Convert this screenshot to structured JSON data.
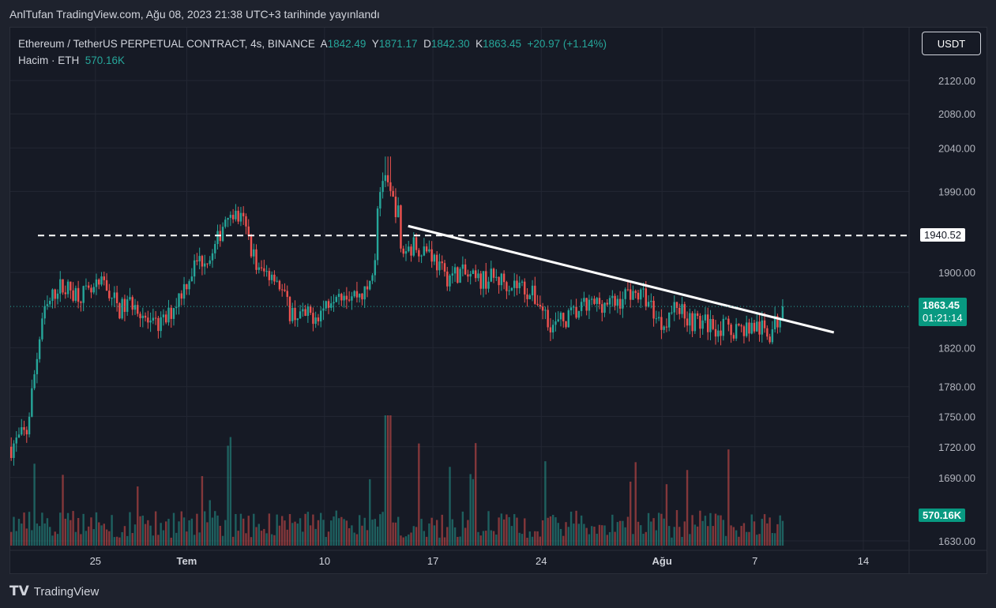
{
  "header": {
    "published": "AnlTufan TradingView.com, Ağu 08, 2023 21:38 UTC+3 tarihinde yayınlandı"
  },
  "legend": {
    "symbol": "Ethereum / TetherUS PERPETUAL CONTRACT, 4s, BINANCE",
    "o_label": "A",
    "o": "1842.49",
    "h_label": "Y",
    "h": "1871.17",
    "l_label": "D",
    "l": "1842.30",
    "c_label": "K",
    "c": "1863.45",
    "change": "+20.97 (+1.14%)",
    "volume_label": "Hacim · ETH",
    "volume": "570.16K"
  },
  "currency_button": "USDT",
  "footer": {
    "brand": "TradingView"
  },
  "colors": {
    "up": "#26a69a",
    "down": "#ef5350",
    "bg": "#161a25"
  },
  "chart_data": {
    "type": "candlestick",
    "timeframe": "4h",
    "scale": "log",
    "yticks": [
      "2120.00",
      "2080.00",
      "2040.00",
      "1990.00",
      "1900.00",
      "1820.00",
      "1780.00",
      "1750.00",
      "1720.00",
      "1690.00",
      "1630.00"
    ],
    "ytick_values": [
      2120,
      2080,
      2040,
      1990,
      1900,
      1820,
      1780,
      1750,
      1720,
      1690,
      1630
    ],
    "ylim": [
      1630,
      2120
    ],
    "xticks": [
      {
        "label": "25",
        "day": 5.5
      },
      {
        "label": "Tem",
        "day": 11.4
      },
      {
        "label": "10",
        "day": 20.3
      },
      {
        "label": "17",
        "day": 27.3
      },
      {
        "label": "24",
        "day": 34.3
      },
      {
        "label": "Ağu",
        "day": 42.1
      },
      {
        "label": "7",
        "day": 48.1
      },
      {
        "label": "14",
        "day": 55.1
      }
    ],
    "xlim_days": [
      0,
      58.3
    ],
    "daily_closes": [
      1720,
      1735,
      1850,
      1885,
      1880,
      1875,
      1888,
      1860,
      1870,
      1840,
      1848,
      1880,
      1912,
      1918,
      1970,
      1955,
      1900,
      1900,
      1858,
      1852,
      1858,
      1883,
      1876,
      1878,
      1960,
      1920,
      1930,
      1925,
      1895,
      1900,
      1890,
      1894,
      1890,
      1885,
      1870,
      1842,
      1852,
      1862,
      1868,
      1866,
      1880,
      1872,
      1845,
      1865,
      1848,
      1845,
      1840,
      1840,
      1842,
      1835,
      1863.45
    ],
    "spike": {
      "day": 24.3,
      "high": 2030
    },
    "resistance_line": {
      "price": 1940.52,
      "label": "1940.52"
    },
    "trendline": [
      {
        "day": 25.7,
        "price": 1951
      },
      {
        "day": 53.2,
        "price": 1836
      }
    ],
    "last_price": {
      "label": "1863.45",
      "countdown": "01:21:14",
      "price": 1863.45
    },
    "last_volume": {
      "label": "570.16K"
    }
  }
}
